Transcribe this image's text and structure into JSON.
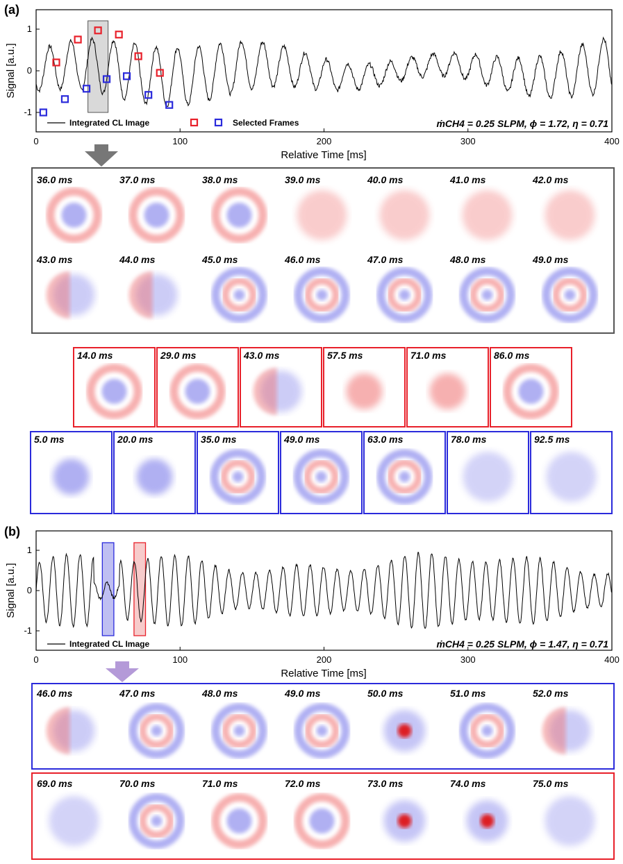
{
  "panel_a": {
    "label": "(a)",
    "ylabel": "Signal [a.u.]",
    "xlabel": "Relative Time [ms]",
    "xticks": [
      "0",
      "100",
      "200",
      "300",
      "400"
    ],
    "yticks": [
      "1",
      "0",
      "-1"
    ],
    "legend_line": "Integrated CL Image",
    "legend_markers": "Selected Frames",
    "condition": "ṁCH4 = 0.25 SLPM, ϕ = 1.72, η = 0.71",
    "highlight_ms": [
      36,
      50
    ],
    "red_markers": [
      [
        14,
        0.2
      ],
      [
        29,
        0.75
      ],
      [
        43,
        0.97
      ],
      [
        57.5,
        0.87
      ],
      [
        71,
        0.35
      ],
      [
        86,
        -0.05
      ]
    ],
    "blue_markers": [
      [
        5,
        -1.0
      ],
      [
        20,
        -0.68
      ],
      [
        35,
        -0.43
      ],
      [
        49,
        -0.2
      ],
      [
        63,
        -0.13
      ],
      [
        78,
        -0.58
      ],
      [
        92.5,
        -0.82
      ]
    ],
    "series": {
      "period_ms": 14.8,
      "amplitude": 0.58,
      "noise": 0.1
    },
    "grid_times": [
      "36.0 ms",
      "37.0 ms",
      "38.0 ms",
      "39.0 ms",
      "40.0 ms",
      "41.0 ms",
      "42.0 ms",
      "43.0 ms",
      "44.0 ms",
      "45.0 ms",
      "46.0 ms",
      "47.0 ms",
      "48.0 ms",
      "49.0 ms"
    ],
    "red_frames": [
      "14.0 ms",
      "29.0 ms",
      "43.0 ms",
      "57.5 ms",
      "71.0 ms",
      "86.0 ms"
    ],
    "blue_frames": [
      "5.0 ms",
      "20.0 ms",
      "35.0 ms",
      "49.0 ms",
      "63.0 ms",
      "78.0 ms",
      "92.5 ms"
    ]
  },
  "panel_b": {
    "label": "(b)",
    "ylabel": "Signal [a.u.]",
    "xlabel": "Relative Time [ms]",
    "xticks": [
      "0",
      "100",
      "200",
      "300",
      "400"
    ],
    "yticks": [
      "1",
      "0",
      "-1"
    ],
    "legend_line": "Integrated CL Image",
    "condition": "ṁCH4 = 0.25 SLPM, ϕ = 1.47, η = 0.71",
    "blue_window_ms": [
      46,
      54
    ],
    "red_window_ms": [
      68,
      76
    ],
    "series": {
      "period_ms": 9.4,
      "amplitude": 0.85,
      "noise": 0.06
    },
    "blue_frames": [
      "46.0 ms",
      "47.0 ms",
      "48.0 ms",
      "49.0 ms",
      "50.0 ms",
      "51.0 ms",
      "52.0 ms"
    ],
    "red_frames": [
      "69.0 ms",
      "70.0 ms",
      "71.0 ms",
      "72.0 ms",
      "73.0 ms",
      "74.0 ms",
      "75.0 ms"
    ]
  },
  "colors": {
    "red": "#e8202a",
    "blue": "#2a2adb",
    "gray": "#555555",
    "arrow_gray": "#777777",
    "arrow_purple": "#b49ad8"
  },
  "chart_data": [
    {
      "type": "line",
      "xlabel": "Relative Time [ms]",
      "ylabel": "Signal [a.u.]",
      "xlim": [
        0,
        400
      ],
      "ylim": [
        -1.3,
        1.3
      ],
      "series": [
        {
          "name": "Integrated CL Image",
          "description": "oscillating signal ~68 Hz, amplitude ~0.6-1.1"
        }
      ],
      "markers": [
        {
          "name": "Selected Frames",
          "red_x": [
            14,
            29,
            43,
            57.5,
            71,
            86
          ],
          "blue_x": [
            5,
            20,
            35,
            49,
            63,
            78,
            92.5
          ]
        }
      ]
    },
    {
      "type": "line",
      "xlabel": "Relative Time [ms]",
      "ylabel": "Signal [a.u.]",
      "xlim": [
        0,
        400
      ],
      "ylim": [
        -1.3,
        1.3
      ],
      "series": [
        {
          "name": "Integrated CL Image",
          "description": "oscillating signal ~106 Hz, amplitude ~0.8-1.2"
        }
      ]
    }
  ]
}
